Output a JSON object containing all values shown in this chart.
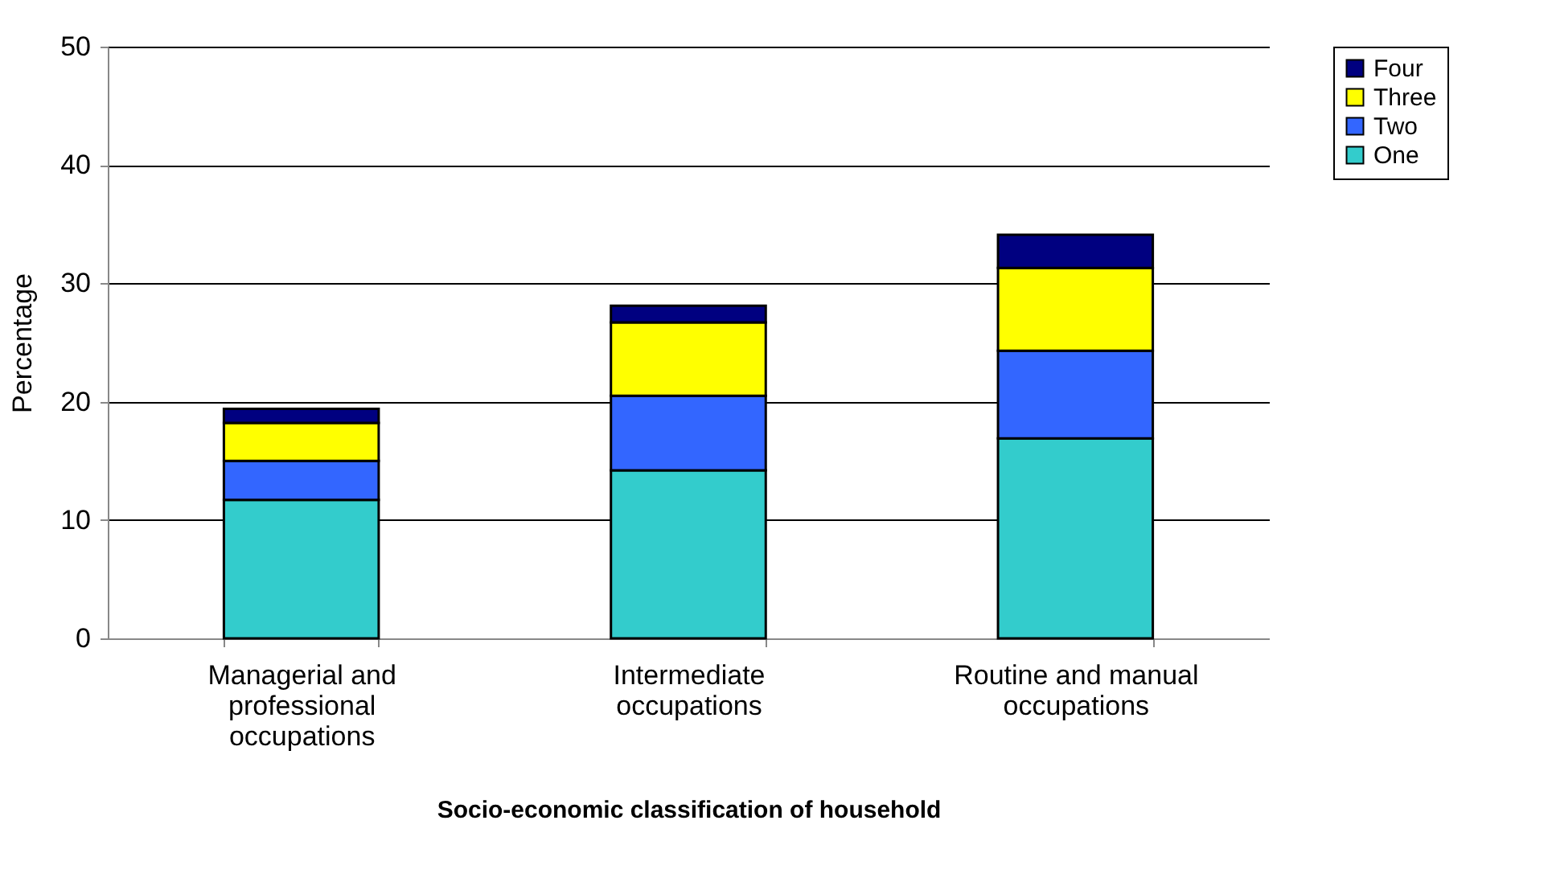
{
  "chart_data": {
    "type": "bar",
    "stacked": true,
    "xlabel": "Socio-economic classification of household",
    "ylabel": "Percentage",
    "categories": [
      "Managerial and professional occupations",
      "Intermediate occupations",
      "Routine and manual occupations"
    ],
    "series": [
      {
        "name": "One",
        "color": "#33cccc",
        "values": [
          11.7,
          14.2,
          16.9
        ]
      },
      {
        "name": "Two",
        "color": "#3366ff",
        "values": [
          3.3,
          6.3,
          7.4
        ]
      },
      {
        "name": "Three",
        "color": "#ffff00",
        "values": [
          3.2,
          6.2,
          7.0
        ]
      },
      {
        "name": "Four",
        "color": "#000080",
        "values": [
          1.2,
          1.4,
          2.8
        ]
      }
    ],
    "ylim": [
      0,
      50
    ],
    "yticks": [
      0,
      10,
      20,
      30,
      40,
      50
    ],
    "grid": "y",
    "legend": "right"
  }
}
